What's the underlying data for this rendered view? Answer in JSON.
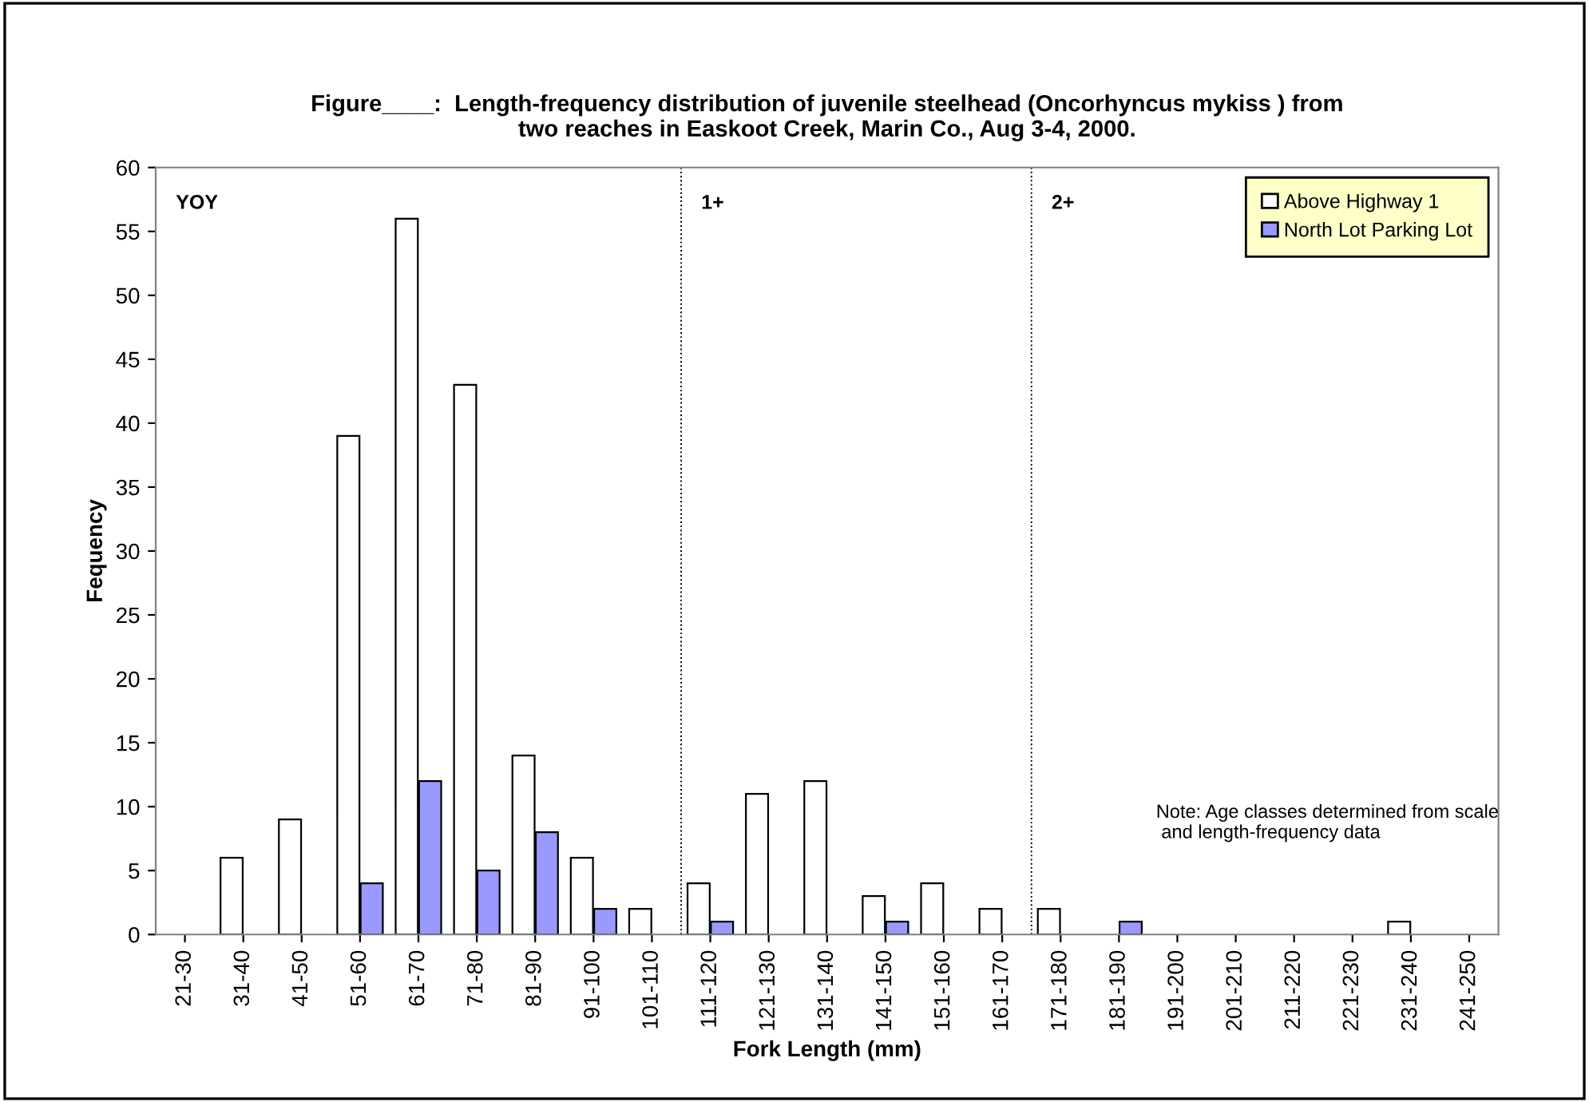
{
  "chart_data": {
    "type": "bar",
    "title": "Figure____:  Length-frequency distribution of juvenile steelhead (Oncorhyncus mykiss ) from\ntwo reaches in Easkoot Creek, Marin Co., Aug 3-4, 2000.",
    "xlabel": "Fork Length (mm)",
    "ylabel": "Fequency",
    "categories": [
      "21-30",
      "31-40",
      "41-50",
      "51-60",
      "61-70",
      "71-80",
      "81-90",
      "91-100",
      "101-110",
      "111-120",
      "121-130",
      "131-140",
      "141-150",
      "151-160",
      "161-170",
      "171-180",
      "181-190",
      "191-200",
      "201-210",
      "211-220",
      "221-230",
      "231-240",
      "241-250"
    ],
    "series": [
      {
        "name": "Above Highway 1",
        "color": "#ffffff",
        "values": [
          0,
          6,
          9,
          39,
          56,
          43,
          14,
          6,
          2,
          4,
          11,
          12,
          3,
          4,
          2,
          2,
          0,
          0,
          0,
          0,
          0,
          1,
          0
        ]
      },
      {
        "name": "North Lot Parking Lot",
        "color": "#9999ff",
        "values": [
          0,
          0,
          0,
          4,
          12,
          5,
          8,
          2,
          0,
          1,
          0,
          0,
          1,
          0,
          0,
          0,
          1,
          0,
          0,
          0,
          0,
          0,
          0
        ]
      }
    ],
    "ylim": [
      0,
      60
    ],
    "yticks": [
      0,
      5,
      10,
      15,
      20,
      25,
      30,
      35,
      40,
      45,
      50,
      55,
      60
    ],
    "annotations": [
      "YOY",
      "1+",
      "2+",
      "Note: Age classes determined from scale\n and length-frequency data"
    ],
    "legend": "top right",
    "grid": false
  }
}
